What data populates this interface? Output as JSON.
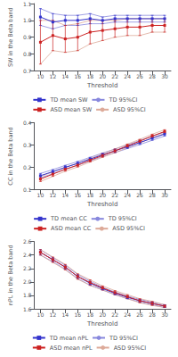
{
  "chart_data": [
    {
      "type": "line",
      "x": [
        10,
        12,
        14,
        16,
        18,
        20,
        22,
        24,
        26,
        28,
        30
      ],
      "xlabel": "Threshold",
      "ylabel": "SW in the Beta band",
      "xlim": [
        9,
        31
      ],
      "xticks": [
        10,
        12,
        14,
        16,
        18,
        20,
        22,
        24,
        26,
        28,
        30
      ],
      "ylim": [
        0.7,
        1.1
      ],
      "yticks": [
        0.7,
        0.8,
        0.9,
        {
          "value": 1.0,
          "label": "1.0"
        },
        1.1
      ],
      "grid": false,
      "legend": "bottom",
      "series": [
        {
          "name": "TD mean SW",
          "color": "#3333cc",
          "marker": "square",
          "line_style": "solid",
          "values": [
            1.02,
            0.99,
            1.0,
            1.0,
            1.01,
            1.0,
            1.01,
            1.01,
            1.01,
            1.01,
            1.01
          ],
          "ci_low": [
            0.97,
            0.95,
            0.97,
            0.97,
            0.98,
            0.98,
            0.99,
            0.99,
            0.99,
            0.99,
            0.99
          ],
          "ci_high": [
            1.07,
            1.04,
            1.03,
            1.03,
            1.04,
            1.02,
            1.03,
            1.03,
            1.03,
            1.03,
            1.03
          ]
        },
        {
          "name": "TD 95%CI",
          "color": "#8888dd",
          "line_style": "solid",
          "lower": [
            0.97,
            0.95,
            0.97,
            0.97,
            0.98,
            0.98,
            0.99,
            0.99,
            0.99,
            0.99,
            0.99
          ],
          "upper": [
            1.07,
            1.04,
            1.03,
            1.03,
            1.04,
            1.02,
            1.03,
            1.03,
            1.03,
            1.03,
            1.03
          ]
        },
        {
          "name": "ASD mean SW",
          "color": "#cc2222",
          "marker": "square",
          "line_style": "solid",
          "values": [
            0.87,
            0.91,
            0.89,
            0.9,
            0.93,
            0.94,
            0.95,
            0.96,
            0.96,
            0.97,
            0.97
          ],
          "ci_low": [
            0.74,
            0.82,
            0.81,
            0.82,
            0.86,
            0.88,
            0.9,
            0.91,
            0.91,
            0.93,
            0.93
          ],
          "ci_high": [
            1.0,
            1.0,
            0.97,
            0.98,
            1.0,
            1.0,
            1.0,
            1.01,
            1.01,
            1.01,
            1.01
          ]
        },
        {
          "name": "ASD 95%CI",
          "color": "#ddaa99",
          "line_style": "solid",
          "lower": [
            0.74,
            0.82,
            0.81,
            0.82,
            0.86,
            0.88,
            0.9,
            0.91,
            0.91,
            0.93,
            0.93
          ],
          "upper": [
            1.0,
            1.0,
            0.97,
            0.98,
            1.0,
            1.0,
            1.0,
            1.01,
            1.01,
            1.01,
            1.01
          ]
        }
      ]
    },
    {
      "type": "line",
      "x": [
        10,
        12,
        14,
        16,
        18,
        20,
        22,
        24,
        26,
        28,
        30
      ],
      "xlabel": "Threshold",
      "ylabel": "CC in the Beta band",
      "xlim": [
        9,
        31
      ],
      "xticks": [
        10,
        12,
        14,
        16,
        18,
        20,
        22,
        24,
        26,
        28,
        30
      ],
      "ylim": [
        0.1,
        0.4
      ],
      "yticks": [
        0.1,
        0.2,
        0.3,
        0.4
      ],
      "grid": false,
      "legend": "bottom",
      "series": [
        {
          "name": "TD mean CC",
          "color": "#3333cc",
          "marker": "square",
          "line_style": "solid",
          "values": [
            0.163,
            0.181,
            0.2,
            0.218,
            0.237,
            0.256,
            0.274,
            0.292,
            0.311,
            0.33,
            0.349
          ],
          "ci_low": [
            0.153,
            0.172,
            0.191,
            0.21,
            0.229,
            0.248,
            0.266,
            0.284,
            0.302,
            0.321,
            0.34
          ],
          "ci_high": [
            0.173,
            0.19,
            0.209,
            0.226,
            0.245,
            0.264,
            0.282,
            0.3,
            0.32,
            0.339,
            0.358
          ]
        },
        {
          "name": "TD 95%CI",
          "color": "#8888dd",
          "line_style": "solid",
          "lower": [
            0.153,
            0.172,
            0.191,
            0.21,
            0.229,
            0.248,
            0.266,
            0.284,
            0.302,
            0.321,
            0.34
          ],
          "upper": [
            0.173,
            0.19,
            0.209,
            0.226,
            0.245,
            0.264,
            0.282,
            0.3,
            0.32,
            0.339,
            0.358
          ]
        },
        {
          "name": "ASD mean CC",
          "color": "#cc2222",
          "marker": "square",
          "line_style": "solid",
          "values": [
            0.148,
            0.17,
            0.192,
            0.21,
            0.232,
            0.253,
            0.274,
            0.296,
            0.317,
            0.34,
            0.36
          ],
          "ci_low": [
            0.137,
            0.16,
            0.183,
            0.202,
            0.224,
            0.245,
            0.266,
            0.288,
            0.309,
            0.332,
            0.352
          ],
          "ci_high": [
            0.159,
            0.18,
            0.201,
            0.218,
            0.24,
            0.261,
            0.282,
            0.304,
            0.325,
            0.348,
            0.368
          ]
        },
        {
          "name": "ASD 95%CI",
          "color": "#ddaa99",
          "line_style": "solid",
          "lower": [
            0.137,
            0.16,
            0.183,
            0.202,
            0.224,
            0.245,
            0.266,
            0.288,
            0.309,
            0.332,
            0.352
          ],
          "upper": [
            0.159,
            0.18,
            0.201,
            0.218,
            0.24,
            0.261,
            0.282,
            0.304,
            0.325,
            0.348,
            0.368
          ]
        }
      ]
    },
    {
      "type": "line",
      "x": [
        10,
        12,
        14,
        16,
        18,
        20,
        22,
        24,
        26,
        28,
        30
      ],
      "xlabel": "Threshold",
      "ylabel": "nPL in the Beta band",
      "xlim": [
        9,
        31
      ],
      "xticks": [
        10,
        12,
        14,
        16,
        18,
        20,
        22,
        24,
        26,
        28,
        30
      ],
      "ylim": [
        1.6,
        2.6
      ],
      "yticks": [
        1.6,
        1.8,
        {
          "value": 2.0,
          "label": "2.0"
        },
        2.2,
        2.4,
        2.6
      ],
      "grid": false,
      "legend": "bottom",
      "series": [
        {
          "name": "TD mean nPL",
          "color": "#3333cc",
          "marker": "square",
          "line_style": "solid",
          "values": [
            2.44,
            2.33,
            2.22,
            2.08,
            1.98,
            1.9,
            1.83,
            1.77,
            1.72,
            1.68,
            1.64
          ],
          "ci_low": [
            2.4,
            2.3,
            2.19,
            2.05,
            1.95,
            1.88,
            1.81,
            1.75,
            1.7,
            1.66,
            1.62
          ],
          "ci_high": [
            2.48,
            2.36,
            2.25,
            2.11,
            2.01,
            1.92,
            1.85,
            1.79,
            1.74,
            1.7,
            1.66
          ]
        },
        {
          "name": "TD 95%CI",
          "color": "#8888dd",
          "line_style": "solid",
          "lower": [
            2.4,
            2.3,
            2.19,
            2.05,
            1.95,
            1.88,
            1.81,
            1.75,
            1.7,
            1.66,
            1.62
          ],
          "upper": [
            2.48,
            2.36,
            2.25,
            2.11,
            2.01,
            1.92,
            1.85,
            1.79,
            1.74,
            1.7,
            1.66
          ]
        },
        {
          "name": "ASD mean nPL",
          "color": "#cc2222",
          "marker": "square",
          "line_style": "solid",
          "values": [
            2.44,
            2.33,
            2.22,
            2.08,
            1.99,
            1.91,
            1.84,
            1.78,
            1.72,
            1.68,
            1.64
          ],
          "ci_low": [
            2.4,
            2.29,
            2.18,
            2.04,
            1.95,
            1.88,
            1.81,
            1.75,
            1.69,
            1.65,
            1.62
          ],
          "ci_high": [
            2.48,
            2.37,
            2.26,
            2.12,
            2.03,
            1.94,
            1.87,
            1.81,
            1.75,
            1.71,
            1.66
          ]
        },
        {
          "name": "ASD 95%CI",
          "color": "#ddaa99",
          "line_style": "solid",
          "lower": [
            2.4,
            2.29,
            2.18,
            2.04,
            1.95,
            1.88,
            1.81,
            1.75,
            1.69,
            1.65,
            1.62
          ],
          "upper": [
            2.48,
            2.37,
            2.26,
            2.12,
            2.03,
            1.94,
            1.87,
            1.81,
            1.75,
            1.71,
            1.66
          ]
        }
      ]
    }
  ]
}
